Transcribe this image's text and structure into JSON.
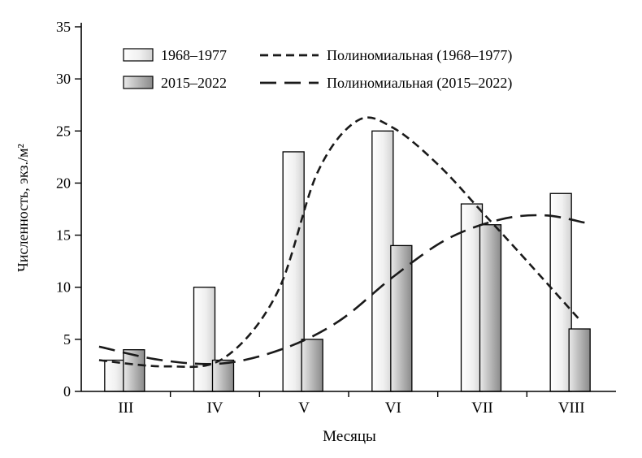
{
  "chart_data": {
    "type": "bar",
    "title": "",
    "xlabel": "Месяцы",
    "ylabel": "Численность, экз./м²",
    "categories": [
      "III",
      "IV",
      "V",
      "VI",
      "VII",
      "VIII"
    ],
    "ylim": [
      0,
      35
    ],
    "ytick_step": 5,
    "yticks": [
      0,
      5,
      10,
      15,
      20,
      25,
      30,
      35
    ],
    "grid": false,
    "legend_position": "top-inside",
    "series": [
      {
        "name": "1968–1977",
        "values": [
          3,
          10,
          23,
          25,
          18,
          19
        ]
      },
      {
        "name": "2015–2022",
        "values": [
          4,
          3,
          5,
          14,
          16,
          6
        ]
      }
    ],
    "trend_lines": [
      {
        "name": "Полиномиальная (1968–1977)",
        "dash": "short",
        "points": [
          [
            -0.3,
            3.0
          ],
          [
            0.45,
            2.4
          ],
          [
            1.1,
            3.2
          ],
          [
            1.7,
            9.5
          ],
          [
            2.15,
            21.0
          ],
          [
            2.6,
            26.0
          ],
          [
            3.0,
            25.3
          ],
          [
            3.5,
            21.8
          ],
          [
            4.0,
            17.2
          ],
          [
            4.45,
            13.0
          ],
          [
            5.1,
            6.8
          ]
        ]
      },
      {
        "name": "Полиномиальная (2015–2022)",
        "dash": "long",
        "points": [
          [
            -0.3,
            4.3
          ],
          [
            0.4,
            3.0
          ],
          [
            1.1,
            2.7
          ],
          [
            1.8,
            4.2
          ],
          [
            2.4,
            6.8
          ],
          [
            3.0,
            11.0
          ],
          [
            3.6,
            14.6
          ],
          [
            4.2,
            16.5
          ],
          [
            4.7,
            16.9
          ],
          [
            5.15,
            16.2
          ]
        ]
      }
    ]
  },
  "colors": {
    "axis": "#000000",
    "line": "#1a1a1a",
    "bar1_start": "#fefefe",
    "bar1_mid": "#f0f0f0",
    "bar1_end": "#d2d2d2",
    "bar2_start": "#e9e9e9",
    "bar2_mid": "#bdbdbd",
    "bar2_end": "#8a8a8a",
    "bar_stroke": "#000000"
  }
}
